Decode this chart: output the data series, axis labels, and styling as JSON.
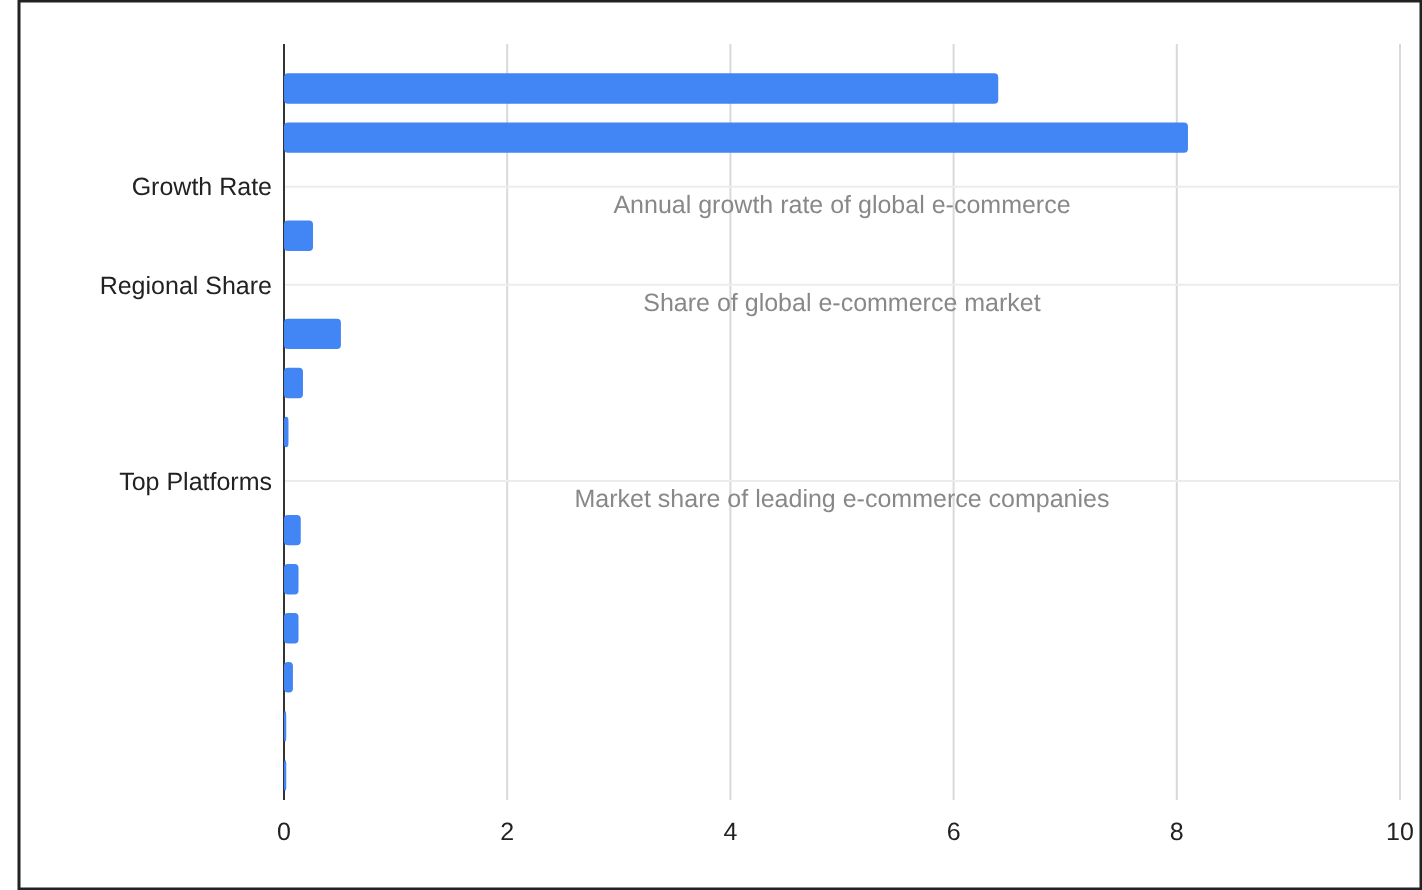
{
  "chart_data": {
    "type": "bar",
    "orientation": "horizontal",
    "categories": [
      null,
      null,
      "Growth Rate",
      null,
      "Regional Share",
      null,
      null,
      null,
      "Top Platforms",
      null,
      null,
      null,
      null,
      null,
      null
    ],
    "values": [
      6.4,
      8.1,
      null,
      0.26,
      null,
      0.51,
      0.17,
      0.04,
      null,
      0.15,
      0.13,
      0.13,
      0.08,
      0.02,
      0.02
    ],
    "color": "#4285f4",
    "xlim": [
      0,
      10
    ],
    "xticks": [
      0,
      2,
      4,
      6,
      8,
      10
    ],
    "grid": true,
    "annotations": [
      "Annual growth rate of global e-commerce",
      "Share of global e-commerce market",
      "Market share of leading e-commerce companies"
    ]
  }
}
